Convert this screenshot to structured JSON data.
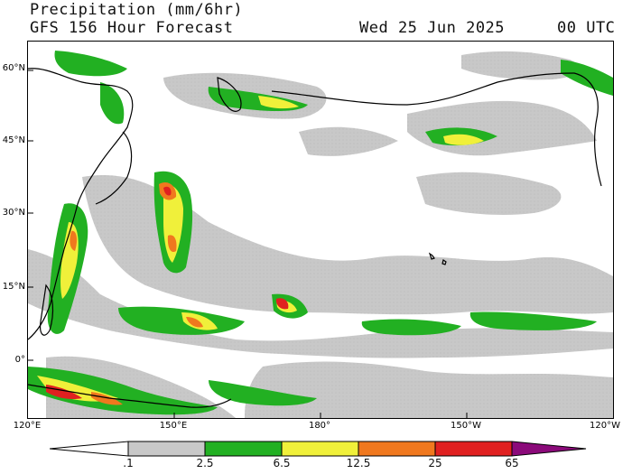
{
  "header": {
    "title": "Precipitation (mm/6hr)",
    "subtitle": "GFS 156 Hour Forecast",
    "valid_date": "Wed 25 Jun 2025",
    "valid_time": "00 UTC"
  },
  "map": {
    "region": "North Pacific",
    "lon_range": [
      "120°E",
      "120°W"
    ],
    "lat_range": [
      "~-12°",
      "~66°N"
    ],
    "lat_labels": [
      "60°N",
      "45°N",
      "30°N",
      "15°N",
      "0°"
    ],
    "lon_labels": [
      "120°E",
      "150°E",
      "180°",
      "150°W",
      "120°W"
    ]
  },
  "colorbar": {
    "labels": [
      ".1",
      "2.5",
      "6.5",
      "12.5",
      "25",
      "65"
    ],
    "colors": [
      "#ffffff",
      "#c8c8c8",
      "#22b022",
      "#f0f03a",
      "#f0781e",
      "#e02020",
      "#8b0a7a"
    ]
  }
}
